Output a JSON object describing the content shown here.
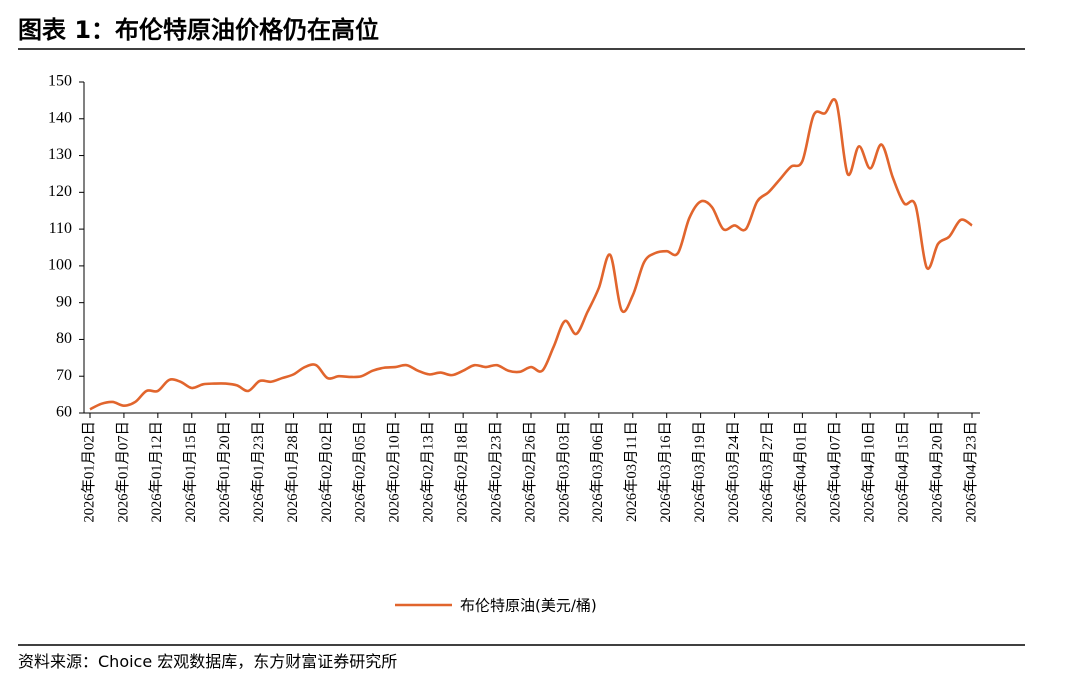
{
  "chart_data": {
    "type": "line",
    "title": "图表 1：布伦特原油价格仍在高位",
    "source": "资料来源：Choice 宏观数据库，东方财富证券研究所",
    "categories": [
      "2026年01月02日",
      null,
      null,
      "2026年01月07日",
      null,
      null,
      "2026年01月12日",
      null,
      null,
      "2026年01月15日",
      null,
      null,
      "2026年01月20日",
      null,
      null,
      "2026年01月23日",
      null,
      null,
      "2026年01月28日",
      null,
      null,
      "2026年02月02日",
      null,
      null,
      "2026年02月05日",
      null,
      null,
      "2026年02月10日",
      null,
      null,
      "2026年02月13日",
      null,
      null,
      "2026年02月18日",
      null,
      null,
      "2026年02月23日",
      null,
      null,
      "2026年02月26日",
      null,
      null,
      "2026年03月03日",
      null,
      null,
      "2026年03月06日",
      null,
      null,
      "2026年03月11日",
      null,
      null,
      "2026年03月16日",
      null,
      null,
      "2026年03月19日",
      null,
      null,
      "2026年03月24日",
      null,
      null,
      "2026年03月27日",
      null,
      null,
      "2026年04月01日",
      null,
      null,
      "2026年04月07日",
      null,
      null,
      "2026年04月10日",
      null,
      null,
      "2026年04月15日",
      null,
      null,
      "2026年04月20日",
      null,
      null,
      "2026年04月23日"
    ],
    "series": [
      {
        "name": "布伦特原油(美元/桶)",
        "color": "#e1652d",
        "values": [
          61,
          62.5,
          63,
          62,
          63,
          66,
          66,
          69,
          68.5,
          66.8,
          67.8,
          68,
          68,
          67.5,
          66,
          68.7,
          68.5,
          69.5,
          70.5,
          72.5,
          73,
          69.5,
          70,
          69.8,
          70,
          71.5,
          72.3,
          72.5,
          73,
          71.5,
          70.5,
          71,
          70.3,
          71.5,
          73,
          72.5,
          73,
          71.5,
          71.2,
          72.5,
          71.5,
          78,
          85,
          81.5,
          87.5,
          94,
          103,
          88,
          92,
          101,
          103.5,
          104,
          103.5,
          113,
          117.5,
          116,
          110,
          111,
          110,
          117.5,
          120,
          123.5,
          127,
          128.5,
          141,
          141.5,
          144.5,
          125,
          132.5,
          126.5,
          133,
          124,
          117,
          116.5,
          99.5,
          106,
          108,
          112.5,
          111
        ]
      }
    ],
    "ylim": [
      60,
      150
    ],
    "yticks": [
      60,
      70,
      80,
      90,
      100,
      110,
      120,
      130,
      140,
      150
    ]
  }
}
